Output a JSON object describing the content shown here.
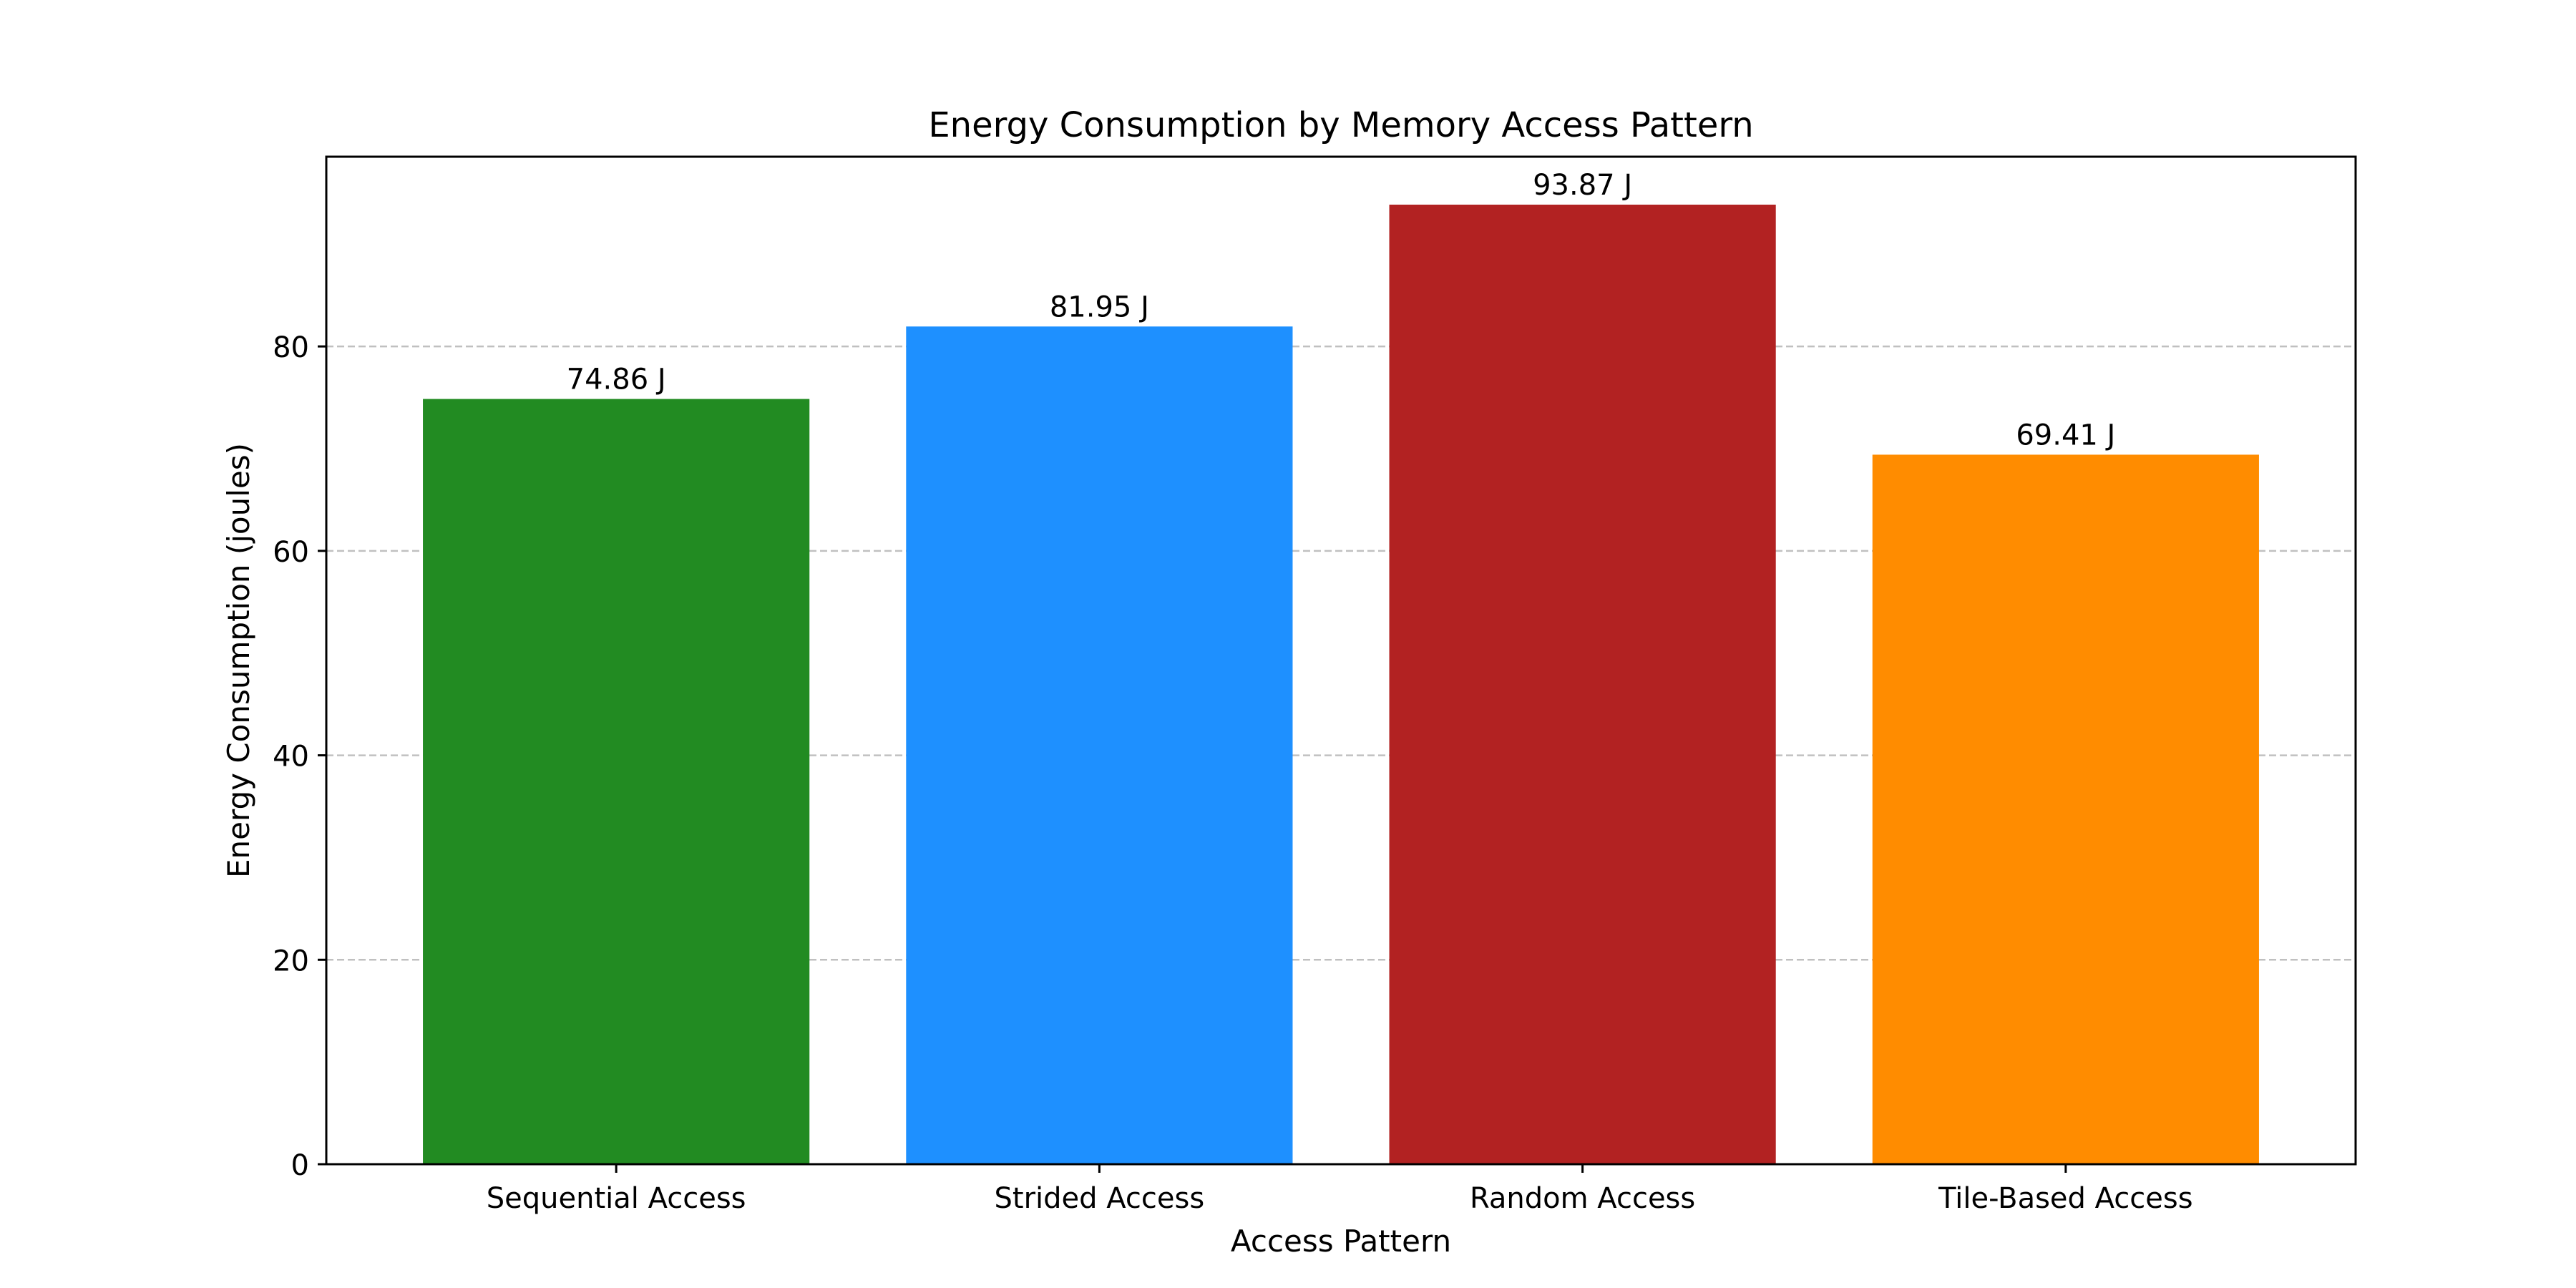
{
  "chart_data": {
    "type": "bar",
    "title": "Energy Consumption by Memory Access Pattern",
    "xlabel": "Access Pattern",
    "ylabel": "Energy Consumption (joules)",
    "categories": [
      "Sequential Access",
      "Strided Access",
      "Random Access",
      "Tile-Based Access"
    ],
    "values": [
      74.86,
      81.95,
      93.87,
      69.41
    ],
    "data_labels": [
      "74.86 J",
      "81.95 J",
      "93.87 J",
      "69.41 J"
    ],
    "colors": [
      "#228B22",
      "#1E90FF",
      "#B22222",
      "#FF8C00"
    ],
    "ylim": [
      0,
      98.56
    ],
    "yticks": [
      0,
      20,
      40,
      60,
      80
    ],
    "ytick_labels": [
      "0",
      "20",
      "40",
      "60",
      "80"
    ],
    "grid": "y-dashed",
    "gridline_color": "#c0c0c0",
    "legend": "none"
  }
}
